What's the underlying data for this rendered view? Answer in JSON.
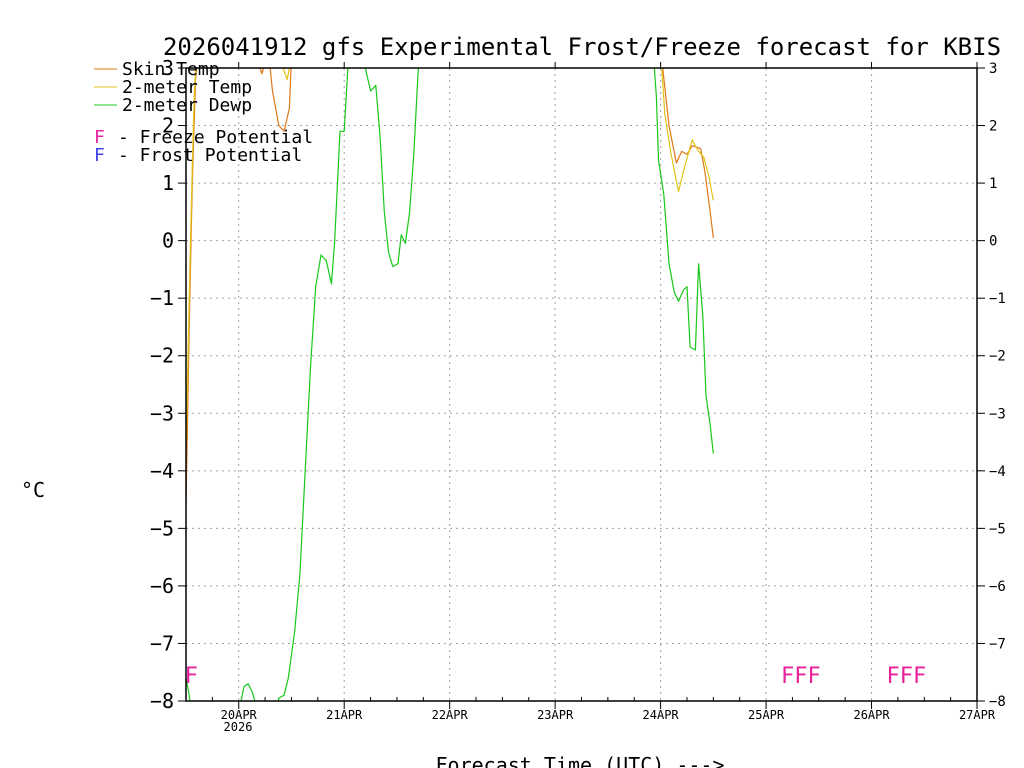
{
  "chart_data": {
    "type": "line",
    "title": "2026041912 gfs Experimental Frost/Freeze forecast for KBIS",
    "xlabel": "Forecast Time (UTC) --->",
    "ylabel": "°C",
    "ylim": [
      -8,
      3
    ],
    "xlim": [
      -0.5,
      7.0
    ],
    "y_ticks": [
      3,
      2,
      1,
      0,
      -1,
      -2,
      -3,
      -4,
      -5,
      -6,
      -7,
      -8
    ],
    "y_tick_labels_left": [
      "3",
      "2",
      "1",
      "0",
      "−1",
      "−2",
      "−3",
      "−4",
      "−5",
      "−6",
      "−7",
      "−8"
    ],
    "y_tick_labels_right": [
      "3",
      "2",
      "1",
      "0",
      "−1",
      "−2",
      "−3",
      "−4",
      "−5",
      "−6",
      "−7",
      "−8"
    ],
    "x_ticks": [
      0,
      1,
      2,
      3,
      4,
      5,
      6,
      7
    ],
    "x_tick_labels": [
      "20APR",
      "21APR",
      "22APR",
      "23APR",
      "24APR",
      "25APR",
      "26APR",
      "27APR"
    ],
    "x_sublabel": "2026",
    "grid": true,
    "x_unit_note": "x values are days after 00 UTC 20 Apr 2026",
    "legend": {
      "placement": "top-left",
      "entries": [
        "Skin Temp",
        "2-meter Temp",
        "2-meter Dewp"
      ],
      "f_letter": "F",
      "potentials": [
        "- Freeze Potential",
        "- Frost Potential"
      ]
    },
    "series": [
      {
        "name": "Skin Temp",
        "color": "#e07818",
        "points": [
          [
            -0.5,
            -4.6
          ],
          [
            -0.47,
            -1.5
          ],
          [
            -0.44,
            1.0
          ],
          [
            -0.41,
            2.8
          ],
          [
            -0.38,
            3.3
          ],
          [
            0.15,
            3.6
          ],
          [
            0.17,
            3.2
          ],
          [
            0.22,
            2.9
          ],
          [
            0.28,
            3.3
          ],
          [
            0.32,
            2.6
          ],
          [
            0.38,
            2.0
          ],
          [
            0.43,
            1.9
          ],
          [
            0.48,
            2.3
          ],
          [
            0.5,
            3.2
          ],
          [
            3.98,
            3.6
          ],
          [
            4.02,
            3.0
          ],
          [
            4.08,
            2.0
          ],
          [
            4.15,
            1.35
          ],
          [
            4.2,
            1.55
          ],
          [
            4.25,
            1.5
          ],
          [
            4.3,
            1.65
          ],
          [
            4.38,
            1.6
          ],
          [
            4.42,
            1.2
          ],
          [
            4.47,
            0.5
          ],
          [
            4.5,
            0.05
          ]
        ]
      },
      {
        "name": "2-meter Temp",
        "color": "#e0c418",
        "points": [
          [
            -0.5,
            -3.7
          ],
          [
            -0.47,
            -1.0
          ],
          [
            -0.44,
            1.3
          ],
          [
            -0.42,
            2.6
          ],
          [
            -0.4,
            3.2
          ],
          [
            0.38,
            3.3
          ],
          [
            0.42,
            3.0
          ],
          [
            0.46,
            2.8
          ],
          [
            0.5,
            3.2
          ],
          [
            4.0,
            3.3
          ],
          [
            4.04,
            2.2
          ],
          [
            4.1,
            1.5
          ],
          [
            4.17,
            0.85
          ],
          [
            4.23,
            1.3
          ],
          [
            4.3,
            1.75
          ],
          [
            4.36,
            1.55
          ],
          [
            4.41,
            1.45
          ],
          [
            4.46,
            1.1
          ],
          [
            4.5,
            0.7
          ]
        ]
      },
      {
        "name": "2-meter Dewp",
        "color": "#18c818",
        "points": [
          [
            -0.5,
            -7.6
          ],
          [
            -0.47,
            -7.9
          ],
          [
            -0.45,
            -8.2
          ],
          [
            0.0,
            -8.2
          ],
          [
            0.05,
            -7.75
          ],
          [
            0.09,
            -7.7
          ],
          [
            0.13,
            -7.85
          ],
          [
            0.16,
            -8.05
          ],
          [
            0.2,
            -8.25
          ],
          [
            0.35,
            -8.3
          ],
          [
            0.38,
            -7.95
          ],
          [
            0.43,
            -7.9
          ],
          [
            0.47,
            -7.6
          ],
          [
            0.53,
            -6.8
          ],
          [
            0.58,
            -5.8
          ],
          [
            0.63,
            -4.0
          ],
          [
            0.68,
            -2.2
          ],
          [
            0.73,
            -0.8
          ],
          [
            0.78,
            -0.25
          ],
          [
            0.83,
            -0.35
          ],
          [
            0.88,
            -0.75
          ],
          [
            0.91,
            0.0
          ],
          [
            0.96,
            1.9
          ],
          [
            1.0,
            1.9
          ],
          [
            1.05,
            3.5
          ],
          [
            1.12,
            3.6
          ],
          [
            1.2,
            3.0
          ],
          [
            1.25,
            2.6
          ],
          [
            1.3,
            2.7
          ],
          [
            1.34,
            1.8
          ],
          [
            1.38,
            0.5
          ],
          [
            1.42,
            -0.2
          ],
          [
            1.46,
            -0.45
          ],
          [
            1.51,
            -0.4
          ],
          [
            1.54,
            0.1
          ],
          [
            1.58,
            -0.05
          ],
          [
            1.62,
            0.5
          ],
          [
            1.66,
            1.5
          ],
          [
            1.7,
            2.9
          ],
          [
            1.72,
            3.5
          ],
          [
            3.92,
            3.5
          ],
          [
            3.96,
            2.5
          ],
          [
            3.98,
            1.4
          ],
          [
            4.03,
            0.8
          ],
          [
            4.08,
            -0.4
          ],
          [
            4.13,
            -0.9
          ],
          [
            4.17,
            -1.05
          ],
          [
            4.22,
            -0.85
          ],
          [
            4.25,
            -0.8
          ],
          [
            4.28,
            -1.85
          ],
          [
            4.33,
            -1.9
          ],
          [
            4.36,
            -0.4
          ],
          [
            4.4,
            -1.3
          ],
          [
            4.43,
            -2.7
          ],
          [
            4.47,
            -3.2
          ],
          [
            4.5,
            -3.7
          ]
        ]
      }
    ],
    "annotations": [
      {
        "text": "F",
        "x": -0.45,
        "y": -7.55,
        "color": "#e8209c"
      },
      {
        "text": "FFF",
        "x": 5.33,
        "y": -7.55,
        "color": "#e8209c"
      },
      {
        "text": "FFF",
        "x": 6.33,
        "y": -7.55,
        "color": "#e8209c"
      }
    ],
    "colors": {
      "freeze": "#e8209c",
      "frost": "#4040e8",
      "grid": "#a0a0a0",
      "axis": "#000000"
    }
  }
}
